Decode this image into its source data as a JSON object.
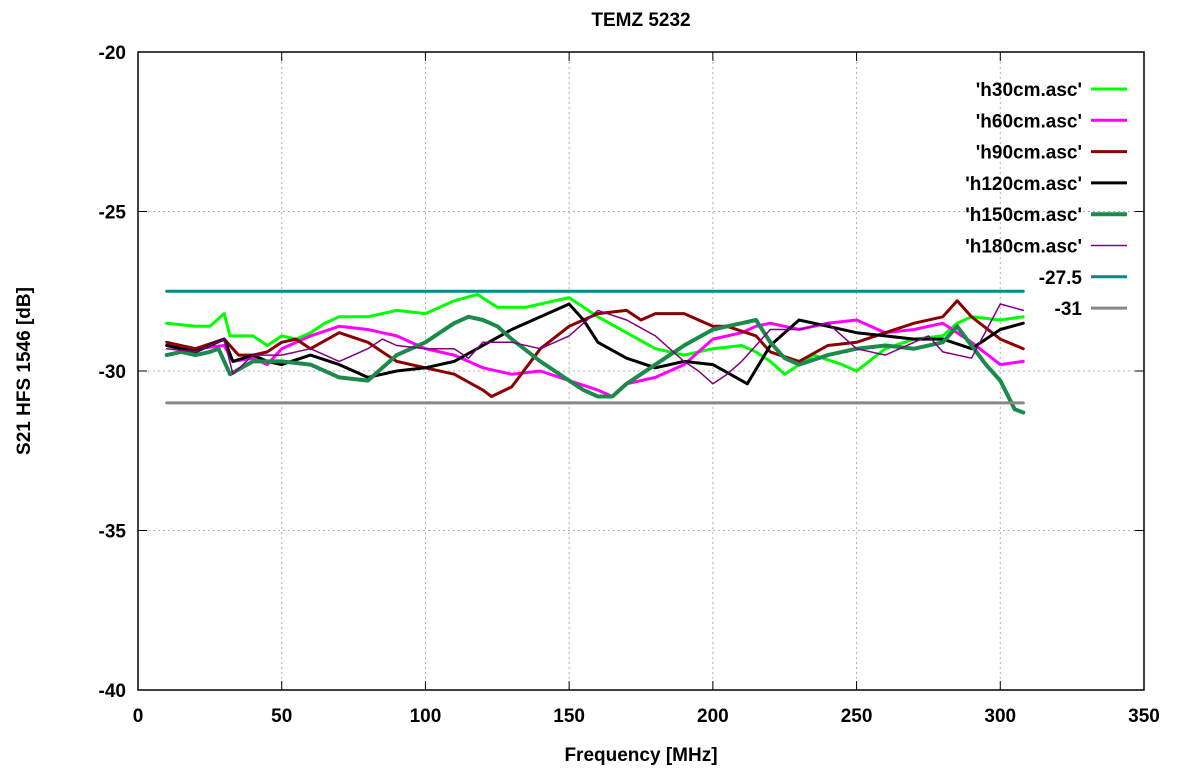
{
  "chart_data": {
    "type": "line",
    "title": "TEMZ 5232",
    "xlabel": "Frequency [MHz]",
    "ylabel": "S21 HFS 1546 [dB]",
    "xlim": [
      0,
      350
    ],
    "ylim": [
      -40,
      -20
    ],
    "xticks": [
      0,
      50,
      100,
      150,
      200,
      250,
      300,
      350
    ],
    "yticks": [
      -40,
      -35,
      -30,
      -25,
      -20
    ],
    "xtick_labels": [
      "0",
      "50",
      "100",
      "150",
      "200",
      "250",
      "300",
      "350"
    ],
    "ytick_labels": [
      "-40",
      "-35",
      "-30",
      "-25",
      "-20"
    ],
    "grid": true,
    "legend_position": "top-right",
    "series": [
      {
        "name": "'h30cm.asc'",
        "color": "#00ff00",
        "width": 3,
        "x": [
          10,
          20,
          25,
          30,
          32,
          40,
          45,
          50,
          55,
          60,
          65,
          70,
          80,
          90,
          100,
          105,
          110,
          118,
          125,
          135,
          150,
          160,
          170,
          180,
          190,
          200,
          210,
          215,
          220,
          225,
          235,
          245,
          250,
          260,
          270,
          280,
          285,
          290,
          300,
          308
        ],
        "y": [
          -28.5,
          -28.6,
          -28.6,
          -28.2,
          -28.9,
          -28.9,
          -29.2,
          -28.9,
          -29.0,
          -28.8,
          -28.5,
          -28.3,
          -28.3,
          -28.1,
          -28.2,
          -28.0,
          -27.8,
          -27.6,
          -28.0,
          -28.0,
          -27.7,
          -28.3,
          -28.8,
          -29.3,
          -29.5,
          -29.3,
          -29.2,
          -29.4,
          -29.7,
          -30.1,
          -29.5,
          -29.8,
          -30.0,
          -29.3,
          -29.0,
          -28.9,
          -28.5,
          -28.3,
          -28.4,
          -28.3
        ]
      },
      {
        "name": "'h60cm.asc'",
        "color": "#ff00ff",
        "width": 3,
        "x": [
          10,
          20,
          30,
          33,
          40,
          45,
          50,
          60,
          70,
          80,
          90,
          100,
          110,
          115,
          120,
          130,
          140,
          150,
          160,
          165,
          170,
          180,
          190,
          200,
          210,
          215,
          220,
          230,
          240,
          250,
          260,
          270,
          280,
          290,
          300,
          308
        ],
        "y": [
          -29.2,
          -29.3,
          -29.2,
          -29.7,
          -29.6,
          -29.8,
          -29.3,
          -28.9,
          -28.6,
          -28.7,
          -28.9,
          -29.3,
          -29.5,
          -29.7,
          -29.9,
          -30.1,
          -30.0,
          -30.3,
          -30.6,
          -30.8,
          -30.4,
          -30.2,
          -29.8,
          -29.0,
          -28.8,
          -28.6,
          -28.5,
          -28.7,
          -28.5,
          -28.4,
          -28.8,
          -28.7,
          -28.5,
          -29.1,
          -29.8,
          -29.7
        ]
      },
      {
        "name": "'h90cm.asc'",
        "color": "#8b0000",
        "width": 3,
        "x": [
          10,
          20,
          30,
          35,
          40,
          45,
          50,
          55,
          60,
          70,
          80,
          90,
          100,
          110,
          120,
          123,
          130,
          140,
          150,
          160,
          170,
          175,
          180,
          190,
          200,
          205,
          215,
          220,
          230,
          240,
          250,
          260,
          270,
          280,
          285,
          290,
          300,
          308
        ],
        "y": [
          -29.1,
          -29.3,
          -29.0,
          -29.5,
          -29.5,
          -29.4,
          -29.1,
          -29.0,
          -29.3,
          -28.8,
          -29.1,
          -29.7,
          -29.9,
          -30.1,
          -30.6,
          -30.8,
          -30.5,
          -29.3,
          -28.6,
          -28.2,
          -28.1,
          -28.4,
          -28.2,
          -28.2,
          -28.6,
          -28.6,
          -28.9,
          -29.4,
          -29.7,
          -29.2,
          -29.1,
          -28.8,
          -28.5,
          -28.3,
          -27.8,
          -28.3,
          -29.0,
          -29.3
        ]
      },
      {
        "name": "'h120cm.asc'",
        "color": "#000000",
        "width": 3,
        "x": [
          10,
          20,
          25,
          30,
          33,
          40,
          45,
          50,
          60,
          70,
          80,
          90,
          100,
          110,
          120,
          130,
          140,
          145,
          150,
          155,
          160,
          170,
          180,
          190,
          200,
          210,
          212,
          220,
          230,
          240,
          250,
          260,
          270,
          280,
          290,
          300,
          308
        ],
        "y": [
          -29.2,
          -29.4,
          -29.2,
          -29.0,
          -29.7,
          -29.5,
          -29.7,
          -29.8,
          -29.5,
          -29.8,
          -30.2,
          -30.0,
          -29.9,
          -29.7,
          -29.2,
          -28.7,
          -28.3,
          -28.1,
          -27.9,
          -28.4,
          -29.1,
          -29.6,
          -29.9,
          -29.7,
          -29.8,
          -30.3,
          -30.4,
          -29.2,
          -28.4,
          -28.6,
          -28.8,
          -28.9,
          -29.0,
          -29.0,
          -29.3,
          -28.7,
          -28.5
        ]
      },
      {
        "name": "'h150cm.asc'",
        "color": "#1b8a4a",
        "width": 4,
        "x": [
          10,
          15,
          20,
          25,
          28,
          32,
          40,
          45,
          50,
          60,
          70,
          80,
          90,
          100,
          105,
          110,
          115,
          120,
          125,
          130,
          140,
          150,
          155,
          160,
          165,
          170,
          180,
          190,
          200,
          205,
          210,
          215,
          220,
          225,
          230,
          240,
          250,
          260,
          270,
          280,
          285,
          290,
          295,
          300,
          305,
          308
        ],
        "y": [
          -29.5,
          -29.4,
          -29.5,
          -29.4,
          -29.3,
          -30.1,
          -29.7,
          -29.7,
          -29.7,
          -29.8,
          -30.2,
          -30.3,
          -29.5,
          -29.1,
          -28.8,
          -28.5,
          -28.3,
          -28.4,
          -28.6,
          -29.0,
          -29.7,
          -30.3,
          -30.6,
          -30.8,
          -30.8,
          -30.4,
          -29.8,
          -29.2,
          -28.7,
          -28.6,
          -28.5,
          -28.4,
          -29.1,
          -29.6,
          -29.8,
          -29.5,
          -29.3,
          -29.2,
          -29.3,
          -29.1,
          -28.6,
          -29.2,
          -29.8,
          -30.3,
          -31.2,
          -31.3
        ]
      },
      {
        "name": "'h180cm.asc'",
        "color": "#800080",
        "width": 1.5,
        "x": [
          10,
          20,
          30,
          33,
          40,
          50,
          60,
          70,
          80,
          85,
          90,
          100,
          110,
          115,
          120,
          130,
          140,
          150,
          155,
          160,
          170,
          180,
          190,
          195,
          200,
          205,
          210,
          215,
          220,
          230,
          240,
          245,
          250,
          260,
          270,
          275,
          280,
          290,
          300,
          308
        ],
        "y": [
          -29.3,
          -29.4,
          -29.0,
          -30.1,
          -29.5,
          -29.5,
          -29.3,
          -29.7,
          -29.3,
          -29.0,
          -29.2,
          -29.3,
          -29.3,
          -29.6,
          -29.1,
          -29.1,
          -29.3,
          -28.9,
          -28.5,
          -28.1,
          -28.4,
          -28.9,
          -29.7,
          -30.0,
          -30.4,
          -30.1,
          -29.7,
          -29.2,
          -28.7,
          -28.7,
          -28.5,
          -28.9,
          -29.3,
          -29.5,
          -29.1,
          -28.9,
          -29.4,
          -29.6,
          -27.9,
          -28.1
        ]
      },
      {
        "name": "-27.5",
        "color": "#008b8b",
        "width": 3,
        "x": [
          10,
          308
        ],
        "y": [
          -27.5,
          -27.5
        ]
      },
      {
        "name": "-31",
        "color": "#888888",
        "width": 3,
        "x": [
          10,
          308
        ],
        "y": [
          -31,
          -31
        ]
      }
    ]
  }
}
